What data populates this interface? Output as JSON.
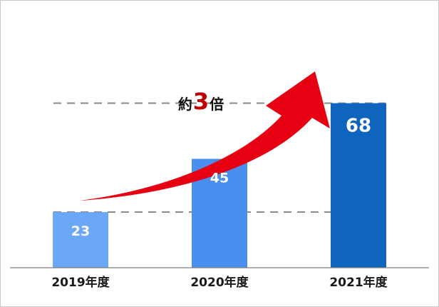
{
  "chart_data": {
    "type": "bar",
    "categories": [
      "2019年度",
      "2020年度",
      "2021年度"
    ],
    "values": [
      23,
      45,
      68
    ],
    "value_labels": [
      "23",
      "45",
      "68"
    ],
    "ylim": [
      0,
      95
    ],
    "grid": false,
    "reference_lines": [
      23,
      68
    ],
    "colors": [
      "#6aa8f5",
      "#4a8ef0",
      "#0f64be"
    ],
    "annotation": {
      "prefix": "約",
      "number": "3",
      "suffix": "倍",
      "arrow_color": "#e60012",
      "number_color": "#c00000"
    }
  }
}
